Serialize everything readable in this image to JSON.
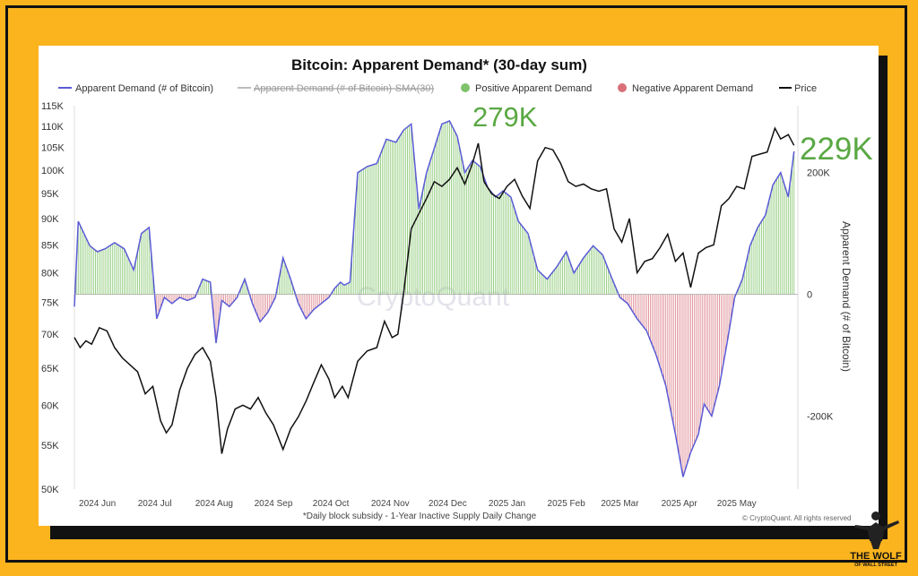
{
  "chart_data": {
    "type": "line",
    "title": "Bitcoin: Apparent Demand* (30-day sum)",
    "footnote": "*Daily block subsidy - 1-Year Inactive Supply Daily Change",
    "copyright": "© CryptoQuant. All rights reserved",
    "watermark": "CryptoQuant",
    "legend": {
      "placement": "top",
      "items": [
        {
          "label": "Apparent Demand (# of Bitcoin)",
          "color": "#5b5bd6",
          "style": "line"
        },
        {
          "label": "Apparent Demand (# of Bitcoin)-SMA(30)",
          "color": "#999999",
          "style": "line",
          "struck": true
        },
        {
          "label": "Positive Apparent Demand",
          "color": "#7fc26b",
          "style": "dot"
        },
        {
          "label": "Negative Apparent Demand",
          "color": "#d9707a",
          "style": "dot"
        },
        {
          "label": "Price",
          "color": "#111111",
          "style": "line"
        }
      ]
    },
    "x_ticks": [
      "2024 Jun",
      "2024 Jul",
      "2024 Aug",
      "2024 Sep",
      "2024 Oct",
      "2024 Nov",
      "2024 Dec",
      "2025 Jan",
      "2025 Feb",
      "2025 Mar",
      "2025 Apr",
      "2025 May"
    ],
    "x_range": [
      "2024-05-20",
      "2025-06-02"
    ],
    "y_left": {
      "label": "",
      "ticks": [
        "50K",
        "55K",
        "60K",
        "65K",
        "70K",
        "75K",
        "80K",
        "85K",
        "90K",
        "95K",
        "100K",
        "105K",
        "110K",
        "115K"
      ],
      "range": [
        50000,
        115000
      ],
      "scale": "log"
    },
    "y_right": {
      "label": "Apparent Demand (# of Bitcoin)",
      "ticks": [
        "200K",
        "0",
        "-200K"
      ],
      "range": [
        -320000,
        310000
      ]
    },
    "annotations": [
      {
        "text": "279K",
        "color": "#5aa843"
      },
      {
        "text": "229K",
        "color": "#5aa843"
      }
    ],
    "series": [
      {
        "name": "Apparent Demand (# of Bitcoin)",
        "axis": "right",
        "x": [
          "2024-05-20",
          "2024-05-22",
          "2024-05-25",
          "2024-05-28",
          "2024-06-01",
          "2024-06-05",
          "2024-06-10",
          "2024-06-15",
          "2024-06-20",
          "2024-06-24",
          "2024-06-28",
          "2024-07-02",
          "2024-07-06",
          "2024-07-10",
          "2024-07-14",
          "2024-07-18",
          "2024-07-22",
          "2024-07-26",
          "2024-07-30",
          "2024-08-02",
          "2024-08-05",
          "2024-08-09",
          "2024-08-13",
          "2024-08-17",
          "2024-08-21",
          "2024-08-25",
          "2024-08-29",
          "2024-09-02",
          "2024-09-06",
          "2024-09-10",
          "2024-09-14",
          "2024-09-18",
          "2024-09-22",
          "2024-09-26",
          "2024-09-30",
          "2024-10-03",
          "2024-10-06",
          "2024-10-08",
          "2024-10-11",
          "2024-10-15",
          "2024-10-20",
          "2024-10-25",
          "2024-10-30",
          "2024-11-04",
          "2024-11-08",
          "2024-11-12",
          "2024-11-16",
          "2024-11-20",
          "2024-11-24",
          "2024-11-28",
          "2024-12-02",
          "2024-12-06",
          "2024-12-10",
          "2024-12-14",
          "2024-12-18",
          "2024-12-22",
          "2024-12-26",
          "2024-12-30",
          "2025-01-03",
          "2025-01-07",
          "2025-01-12",
          "2025-01-17",
          "2025-01-22",
          "2025-01-27",
          "2025-02-01",
          "2025-02-05",
          "2025-02-10",
          "2025-02-15",
          "2025-02-20",
          "2025-02-25",
          "2025-03-01",
          "2025-03-05",
          "2025-03-10",
          "2025-03-15",
          "2025-03-20",
          "2025-03-25",
          "2025-03-30",
          "2025-04-03",
          "2025-04-07",
          "2025-04-11",
          "2025-04-14",
          "2025-04-18",
          "2025-04-22",
          "2025-04-26",
          "2025-04-30",
          "2025-05-04",
          "2025-05-08",
          "2025-05-12",
          "2025-05-16",
          "2025-05-20",
          "2025-05-24",
          "2025-05-28",
          "2025-05-31"
        ],
        "y": [
          -20000,
          120000,
          100000,
          80000,
          70000,
          75000,
          85000,
          75000,
          40000,
          100000,
          110000,
          -40000,
          -5000,
          -15000,
          -5000,
          -10000,
          -5000,
          25000,
          20000,
          -80000,
          -10000,
          -20000,
          -5000,
          25000,
          -15000,
          -45000,
          -30000,
          -5000,
          60000,
          25000,
          -15000,
          -40000,
          -25000,
          -15000,
          -5000,
          10000,
          20000,
          15000,
          20000,
          200000,
          210000,
          215000,
          255000,
          250000,
          270000,
          280000,
          140000,
          200000,
          240000,
          280000,
          285000,
          260000,
          200000,
          220000,
          210000,
          175000,
          160000,
          170000,
          160000,
          120000,
          100000,
          40000,
          25000,
          45000,
          70000,
          35000,
          60000,
          80000,
          65000,
          25000,
          -5000,
          -15000,
          -40000,
          -60000,
          -100000,
          -150000,
          -230000,
          -300000,
          -260000,
          -230000,
          -180000,
          -200000,
          -150000,
          -80000,
          -5000,
          25000,
          80000,
          110000,
          130000,
          180000,
          200000,
          160000,
          235000
        ]
      },
      {
        "name": "Price",
        "axis": "left",
        "x": [
          "2024-05-20",
          "2024-05-23",
          "2024-05-26",
          "2024-05-29",
          "2024-06-02",
          "2024-06-06",
          "2024-06-10",
          "2024-06-14",
          "2024-06-18",
          "2024-06-22",
          "2024-06-26",
          "2024-06-30",
          "2024-07-04",
          "2024-07-07",
          "2024-07-10",
          "2024-07-14",
          "2024-07-18",
          "2024-07-22",
          "2024-07-26",
          "2024-07-30",
          "2024-08-02",
          "2024-08-05",
          "2024-08-08",
          "2024-08-12",
          "2024-08-16",
          "2024-08-20",
          "2024-08-24",
          "2024-08-28",
          "2024-09-01",
          "2024-09-06",
          "2024-09-10",
          "2024-09-14",
          "2024-09-18",
          "2024-09-22",
          "2024-09-26",
          "2024-09-30",
          "2024-10-03",
          "2024-10-07",
          "2024-10-10",
          "2024-10-15",
          "2024-10-20",
          "2024-10-25",
          "2024-10-29",
          "2024-11-02",
          "2024-11-05",
          "2024-11-08",
          "2024-11-12",
          "2024-11-16",
          "2024-11-20",
          "2024-11-24",
          "2024-11-28",
          "2024-12-02",
          "2024-12-06",
          "2024-12-10",
          "2024-12-14",
          "2024-12-17",
          "2024-12-20",
          "2024-12-24",
          "2024-12-28",
          "2025-01-01",
          "2025-01-05",
          "2025-01-09",
          "2025-01-13",
          "2025-01-17",
          "2025-01-21",
          "2025-01-25",
          "2025-01-29",
          "2025-02-02",
          "2025-02-06",
          "2025-02-10",
          "2025-02-14",
          "2025-02-18",
          "2025-02-22",
          "2025-02-26",
          "2025-03-02",
          "2025-03-06",
          "2025-03-10",
          "2025-03-14",
          "2025-03-18",
          "2025-03-22",
          "2025-03-26",
          "2025-03-30",
          "2025-04-03",
          "2025-04-07",
          "2025-04-11",
          "2025-04-15",
          "2025-04-19",
          "2025-04-23",
          "2025-04-27",
          "2025-05-01",
          "2025-05-05",
          "2025-05-09",
          "2025-05-13",
          "2025-05-17",
          "2025-05-21",
          "2025-05-24",
          "2025-05-28",
          "2025-05-31"
        ],
        "y": [
          69500,
          68000,
          69000,
          68500,
          71000,
          70500,
          68000,
          66500,
          65500,
          64500,
          61500,
          62500,
          58000,
          56500,
          57500,
          62000,
          65000,
          67000,
          68000,
          66000,
          61000,
          54000,
          57000,
          59500,
          60000,
          59500,
          61000,
          59000,
          57500,
          54500,
          57000,
          58500,
          60500,
          63000,
          65500,
          63500,
          61000,
          62500,
          61000,
          66000,
          67500,
          68000,
          72000,
          69500,
          70000,
          76500,
          88000,
          91000,
          94000,
          97500,
          96500,
          98000,
          100500,
          97000,
          101500,
          106000,
          97500,
          95000,
          94000,
          96500,
          98000,
          94500,
          92000,
          102000,
          105000,
          104500,
          101500,
          97500,
          96500,
          97000,
          96000,
          95500,
          96000,
          88000,
          85500,
          90000,
          80000,
          82000,
          82500,
          84500,
          87000,
          82000,
          83500,
          77500,
          83500,
          84500,
          85000,
          92500,
          94000,
          96500,
          96000,
          103000,
          103500,
          104000,
          109500,
          107000,
          108000,
          105500
        ]
      }
    ]
  },
  "branding": {
    "text1": "THE WOLF",
    "text2": "OF WALL STREET"
  }
}
